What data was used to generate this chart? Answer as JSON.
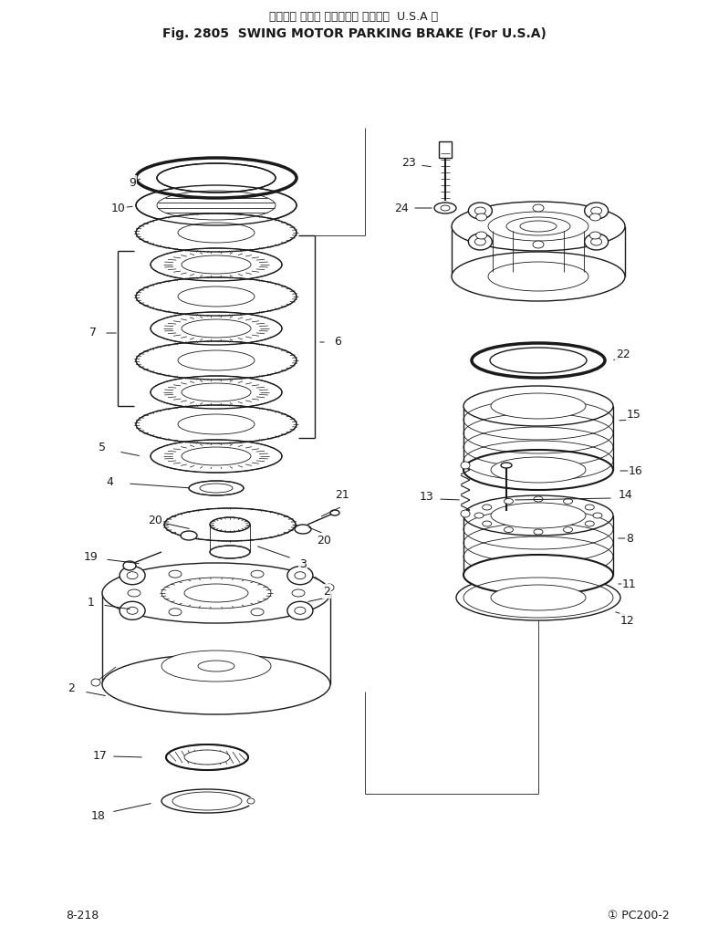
{
  "title_japanese": "スイング モータ パーキング ブレーキ  U.S.A 向",
  "title_english": "Fig. 2805  SWING MOTOR PARKING BRAKE (For U.S.A)",
  "footer_left": "8-218",
  "footer_right": "① PC200-2",
  "bg_color": "#ffffff",
  "line_color": "#1a1a1a",
  "title_fontsize": 9,
  "footer_fontsize": 9,
  "label_fontsize": 9
}
